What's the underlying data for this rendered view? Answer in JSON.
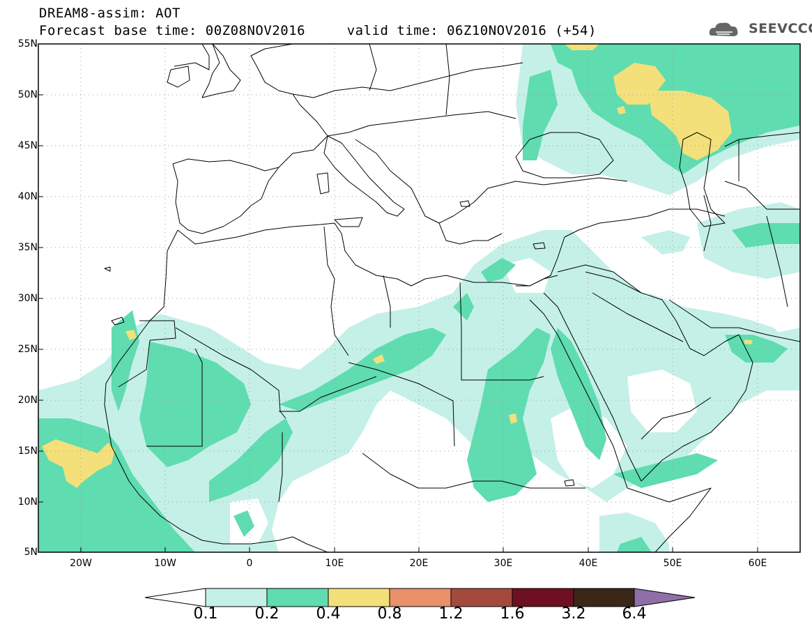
{
  "header": {
    "line1": "DREAM8-assim: AOT",
    "line2": "Forecast base time: 00Z08NOV2016     valid time: 06Z10NOV2016 (+54)"
  },
  "logo": {
    "text": "SEEVCCC",
    "icon": "cloud-icon"
  },
  "map": {
    "lon_range": [
      -25,
      65
    ],
    "lat_range": [
      5,
      55
    ],
    "lat_labels": [
      "55N",
      "50N",
      "45N",
      "40N",
      "35N",
      "30N",
      "25N",
      "20N",
      "15N",
      "10N",
      "5N"
    ],
    "lon_labels": [
      "20W",
      "10W",
      "0",
      "10E",
      "20E",
      "30E",
      "40E",
      "50E",
      "60E"
    ]
  },
  "colorbar": {
    "labels": [
      "0.1",
      "0.2",
      "0.4",
      "0.8",
      "1.2",
      "1.6",
      "3.2",
      "6.4"
    ],
    "colors": [
      "#c4f0e8",
      "#5fdcb0",
      "#f3e07a",
      "#e8916b",
      "#a34a3d",
      "#6e0f24",
      "#3a2717",
      "#8e6fa8"
    ],
    "low_end_color": "#ffffff"
  },
  "colors": {
    "aot_0.1": "#c4f0e8",
    "aot_0.2": "#5fdcb0",
    "aot_0.4": "#f3e07a",
    "border": "#000000"
  }
}
